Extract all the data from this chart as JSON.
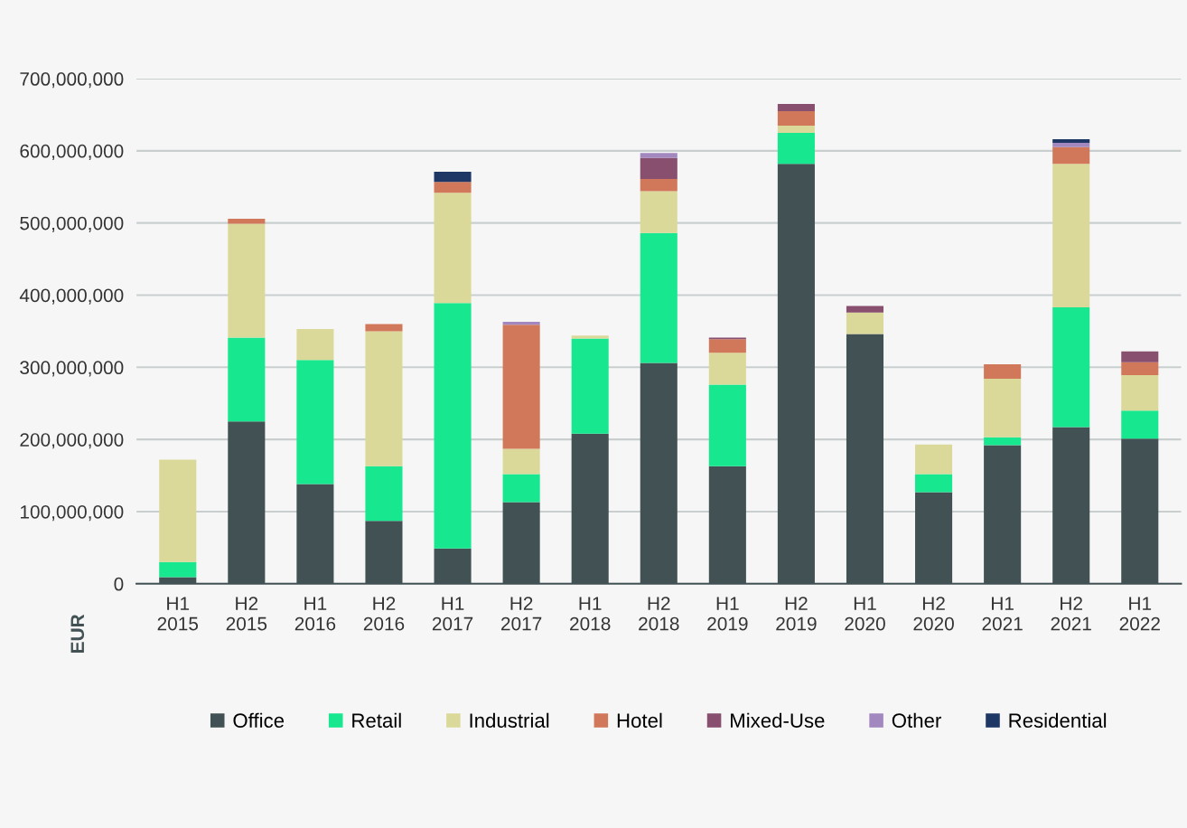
{
  "chart_data": {
    "type": "bar",
    "stacked": true,
    "ylabel": "EUR",
    "categories": [
      "H1\n2015",
      "H2\n2015",
      "H1\n2016",
      "H2\n2016",
      "H1\n2017",
      "H2\n2017",
      "H1\n2018",
      "H2\n2018",
      "H1\n2019",
      "H2\n2019",
      "H1\n2020",
      "H2\n2020",
      "H1\n2021",
      "H2\n2021",
      "H1\n2022"
    ],
    "series": [
      {
        "name": "Office",
        "color": "#425154",
        "values": [
          9000000,
          225000000,
          138000000,
          87000000,
          49000000,
          113000000,
          208000000,
          306000000,
          163000000,
          582000000,
          346000000,
          127000000,
          192000000,
          217000000,
          201000000
        ]
      },
      {
        "name": "Retail",
        "color": "#17e88f",
        "values": [
          21000000,
          116000000,
          172000000,
          76000000,
          340000000,
          39000000,
          132000000,
          180000000,
          113000000,
          43000000,
          null,
          25000000,
          11000000,
          166000000,
          39000000
        ]
      },
      {
        "name": "Industrial",
        "color": "#dbd99a",
        "values": [
          142000000,
          158000000,
          43000000,
          187000000,
          153000000,
          35000000,
          4000000,
          58000000,
          44000000,
          10000000,
          30000000,
          41000000,
          81000000,
          199000000,
          49000000
        ]
      },
      {
        "name": "Hotel",
        "color": "#d2785a",
        "values": [
          null,
          7000000,
          null,
          10000000,
          15000000,
          172000000,
          null,
          17000000,
          19000000,
          20000000,
          null,
          null,
          20000000,
          23000000,
          18000000
        ]
      },
      {
        "name": "Mixed-Use",
        "color": "#884f6e",
        "values": [
          null,
          null,
          null,
          null,
          null,
          null,
          null,
          29000000,
          2000000,
          10000000,
          9000000,
          null,
          null,
          null,
          15000000
        ]
      },
      {
        "name": "Other",
        "color": "#a388bf",
        "values": [
          null,
          null,
          null,
          null,
          null,
          4000000,
          null,
          7000000,
          null,
          null,
          null,
          null,
          null,
          6000000,
          null
        ]
      },
      {
        "name": "Residential",
        "color": "#1f3765",
        "values": [
          null,
          null,
          null,
          null,
          14000000,
          null,
          null,
          null,
          null,
          null,
          null,
          null,
          null,
          5000000,
          null
        ]
      }
    ],
    "ylim": [
      0,
      700000000
    ],
    "yticks": [
      0,
      {
        "value": 100000000,
        "label": "100,000,000"
      },
      {
        "value": 200000000,
        "label": "200,000,000"
      },
      {
        "value": 300000000,
        "label": "300,000,000"
      },
      {
        "value": 400000000,
        "label": "400,000,000"
      },
      {
        "value": 500000000,
        "label": "500,000,000"
      },
      {
        "value": 600000000,
        "label": "600,000,000"
      },
      {
        "value": 700000000,
        "label": "700,000,000"
      }
    ],
    "grid": "y",
    "legend": "bottom"
  }
}
